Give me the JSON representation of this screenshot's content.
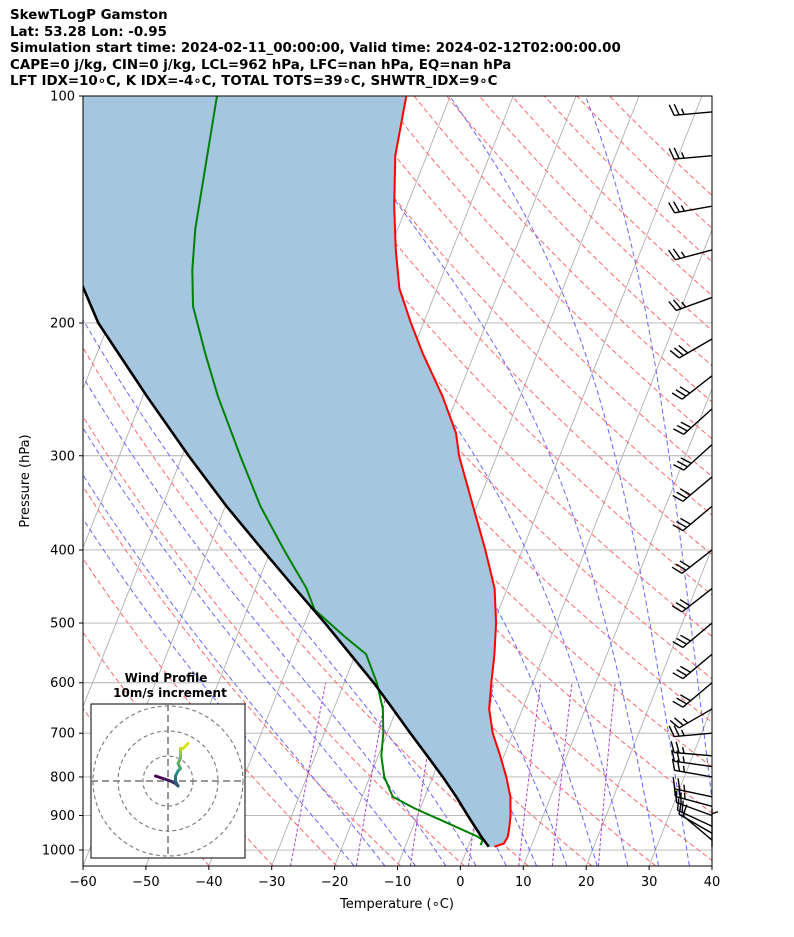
{
  "header": {
    "lines": [
      "SkewTLogP Gamston",
      "Lat: 53.28   Lon: -0.95",
      "Simulation start time: 2024-02-11_00:00:00, Valid time: 2024-02-12T02:00:00.00",
      "CAPE=0 j/kg, CIN=0 j/kg, LCL=962 hPa, LFC=nan hPa, EQ=nan hPa",
      "LFT IDX=10∘C, K IDX=-4∘C, TOTAL TOTS=39∘C, SHWTR_IDX=9∘C"
    ]
  },
  "colors": {
    "temperature": "#ff0000",
    "dewpoint": "#008000",
    "parcel": "#000000",
    "cape_fill": "#a4c6df",
    "isotherm": "#b0b0b0",
    "dry_adiabat": "#ff6666",
    "moist_adiabat": "#6666ff",
    "mixing_ratio": "#aa44cc",
    "wind_barb": "#000000",
    "hodo_start": "#440154",
    "hodo_end": "#d8e219"
  },
  "chart_data": {
    "type": "line",
    "xlabel": "Temperature (∘C)",
    "ylabel": "Pressure (hPa)",
    "xlim": [
      -60,
      40
    ],
    "ylim": [
      1050,
      100
    ],
    "y_scale": "log",
    "grid": true,
    "x_ticks": [
      -60,
      -50,
      -40,
      -30,
      -20,
      -10,
      0,
      10,
      20,
      30,
      40
    ],
    "x_tick_labels": [
      "−60",
      "−50",
      "−40",
      "−30",
      "−20",
      "−10",
      "0",
      "10",
      "20",
      "30",
      "40"
    ],
    "y_ticks": [
      1000,
      900,
      800,
      700,
      600,
      500,
      400,
      300,
      200,
      100
    ],
    "y_tick_labels": [
      "1000",
      "900",
      "800",
      "700",
      "600",
      "500",
      "400",
      "300",
      "200",
      "100"
    ],
    "temperature_profile": [
      [
        990,
        4.2
      ],
      [
        980,
        5.5
      ],
      [
        960,
        5.7
      ],
      [
        930,
        5.3
      ],
      [
        900,
        4.8
      ],
      [
        850,
        3.6
      ],
      [
        800,
        1.7
      ],
      [
        750,
        -0.6
      ],
      [
        700,
        -3.2
      ],
      [
        650,
        -5.3
      ],
      [
        600,
        -6.6
      ],
      [
        550,
        -7.9
      ],
      [
        500,
        -9.6
      ],
      [
        450,
        -12.0
      ],
      [
        400,
        -15.9
      ],
      [
        350,
        -20.6
      ],
      [
        300,
        -26.0
      ],
      [
        280,
        -27.9
      ],
      [
        250,
        -32.4
      ],
      [
        220,
        -38.1
      ],
      [
        200,
        -42.0
      ],
      [
        180,
        -46.0
      ],
      [
        160,
        -49.0
      ],
      [
        140,
        -52.0
      ],
      [
        120,
        -55.0
      ],
      [
        100,
        -57.0
      ]
    ],
    "dewpoint_profile": [
      [
        985,
        1.9
      ],
      [
        970,
        1.9
      ],
      [
        960,
        0.9
      ],
      [
        920,
        -4.9
      ],
      [
        880,
        -11.0
      ],
      [
        850,
        -15.1
      ],
      [
        800,
        -17.7
      ],
      [
        750,
        -19.5
      ],
      [
        700,
        -20.6
      ],
      [
        650,
        -22.2
      ],
      [
        600,
        -24.8
      ],
      [
        550,
        -28.3
      ],
      [
        520,
        -33.0
      ],
      [
        480,
        -39.3
      ],
      [
        450,
        -41.9
      ],
      [
        400,
        -47.9
      ],
      [
        350,
        -54.4
      ],
      [
        300,
        -60.8
      ],
      [
        250,
        -68.1
      ],
      [
        220,
        -72.7
      ],
      [
        190,
        -77.7
      ],
      [
        170,
        -80.1
      ],
      [
        150,
        -82.2
      ],
      [
        120,
        -84.9
      ],
      [
        100,
        -87.1
      ]
    ],
    "parcel_profile": [
      [
        990,
        3.3
      ],
      [
        962,
        1.6
      ],
      [
        900,
        -2.0
      ],
      [
        850,
        -5.0
      ],
      [
        800,
        -8.4
      ],
      [
        750,
        -12.2
      ],
      [
        700,
        -16.3
      ],
      [
        650,
        -20.6
      ],
      [
        600,
        -25.3
      ],
      [
        550,
        -30.8
      ],
      [
        500,
        -36.8
      ],
      [
        450,
        -43.7
      ],
      [
        400,
        -51.3
      ],
      [
        350,
        -59.8
      ],
      [
        300,
        -69.0
      ],
      [
        250,
        -79.4
      ],
      [
        200,
        -91.7
      ],
      [
        150,
        -104.0
      ],
      [
        120,
        -112.0
      ],
      [
        100,
        -118.0
      ]
    ],
    "wind_barbs": [
      [
        990,
        0,
        6
      ],
      [
        970,
        310,
        10
      ],
      [
        950,
        300,
        15
      ],
      [
        930,
        295,
        20
      ],
      [
        900,
        290,
        22
      ],
      [
        875,
        285,
        25
      ],
      [
        850,
        282,
        25
      ],
      [
        800,
        280,
        25
      ],
      [
        775,
        278,
        25
      ],
      [
        750,
        275,
        25
      ],
      [
        700,
        265,
        25
      ],
      [
        650,
        240,
        25
      ],
      [
        600,
        230,
        30
      ],
      [
        550,
        230,
        30
      ],
      [
        500,
        230,
        30
      ],
      [
        450,
        232,
        30
      ],
      [
        400,
        232,
        30
      ],
      [
        350,
        230,
        30
      ],
      [
        320,
        230,
        30
      ],
      [
        290,
        228,
        30
      ],
      [
        260,
        228,
        30
      ],
      [
        235,
        232,
        30
      ],
      [
        210,
        240,
        30
      ],
      [
        185,
        250,
        25
      ],
      [
        160,
        255,
        25
      ],
      [
        140,
        260,
        25
      ],
      [
        120,
        265,
        25
      ],
      [
        105,
        265,
        25
      ]
    ],
    "hodograph": {
      "title": "Wind Profile",
      "subtitle": "10m/s increment",
      "ring_increment": 10,
      "rings": 3,
      "points": [
        [
          -5,
          2
        ],
        [
          -2,
          1
        ],
        [
          1,
          0
        ],
        [
          3,
          -1
        ],
        [
          4,
          -2
        ],
        [
          3,
          0
        ],
        [
          3,
          2
        ],
        [
          4,
          4
        ],
        [
          5,
          5
        ],
        [
          4,
          7
        ],
        [
          5,
          9
        ],
        [
          5,
          11
        ],
        [
          5,
          13
        ],
        [
          6,
          13
        ],
        [
          8,
          15
        ]
      ]
    }
  }
}
